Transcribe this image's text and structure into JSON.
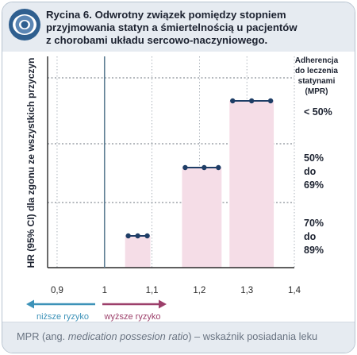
{
  "header": {
    "title_lines": [
      "Rycina 6. Odwrotny związek pomiędzy stopniem",
      "przyjmowania statyn a śmiertelnością u pacjentów",
      "z chorobami układu sercowo-naczyniowego."
    ],
    "logo_icon": "swirl-logo-icon"
  },
  "colors": {
    "header_bg": "#e6ebf1",
    "bar_fill": "#f5dde7",
    "marker": "#1e3d66",
    "reference_line": "#5f7f94",
    "lower_risk": "#3d92b8",
    "higher_risk": "#9c3f6a"
  },
  "chart_data": {
    "type": "forest",
    "ylabel": "HR (95% CI) dla zgonu ze wszystkich  przyczyn",
    "xlabel": "",
    "xlim": [
      0.88,
      1.4
    ],
    "x_ticks": [
      "0,9",
      "1",
      "1,1",
      "1,2",
      "1,3",
      "1,4"
    ],
    "x_tick_values": [
      0.9,
      1.0,
      1.1,
      1.2,
      1.3,
      1.4
    ],
    "reference_value": 1.0,
    "grid": true,
    "groups_header": [
      "Adherencja",
      "do leczenia",
      "statynami",
      "(MPR)"
    ],
    "groups": [
      {
        "label_lines": [
          "< 50%"
        ],
        "hr": 1.31,
        "ci": [
          1.27,
          1.35
        ]
      },
      {
        "label_lines": [
          "50%",
          "do",
          "69%"
        ],
        "hr": 1.21,
        "ci": [
          1.17,
          1.24
        ]
      },
      {
        "label_lines": [
          "70%",
          "do",
          "89%"
        ],
        "hr": 1.07,
        "ci": [
          1.05,
          1.09
        ]
      }
    ],
    "arrows": {
      "lower": "niższe ryzyko",
      "higher": "wyższe ryzyko"
    }
  },
  "footer": {
    "prefix": "MPR (ang. ",
    "term": "medication possesion ratio",
    "suffix": ") – wskaźnik posiadania leku"
  }
}
